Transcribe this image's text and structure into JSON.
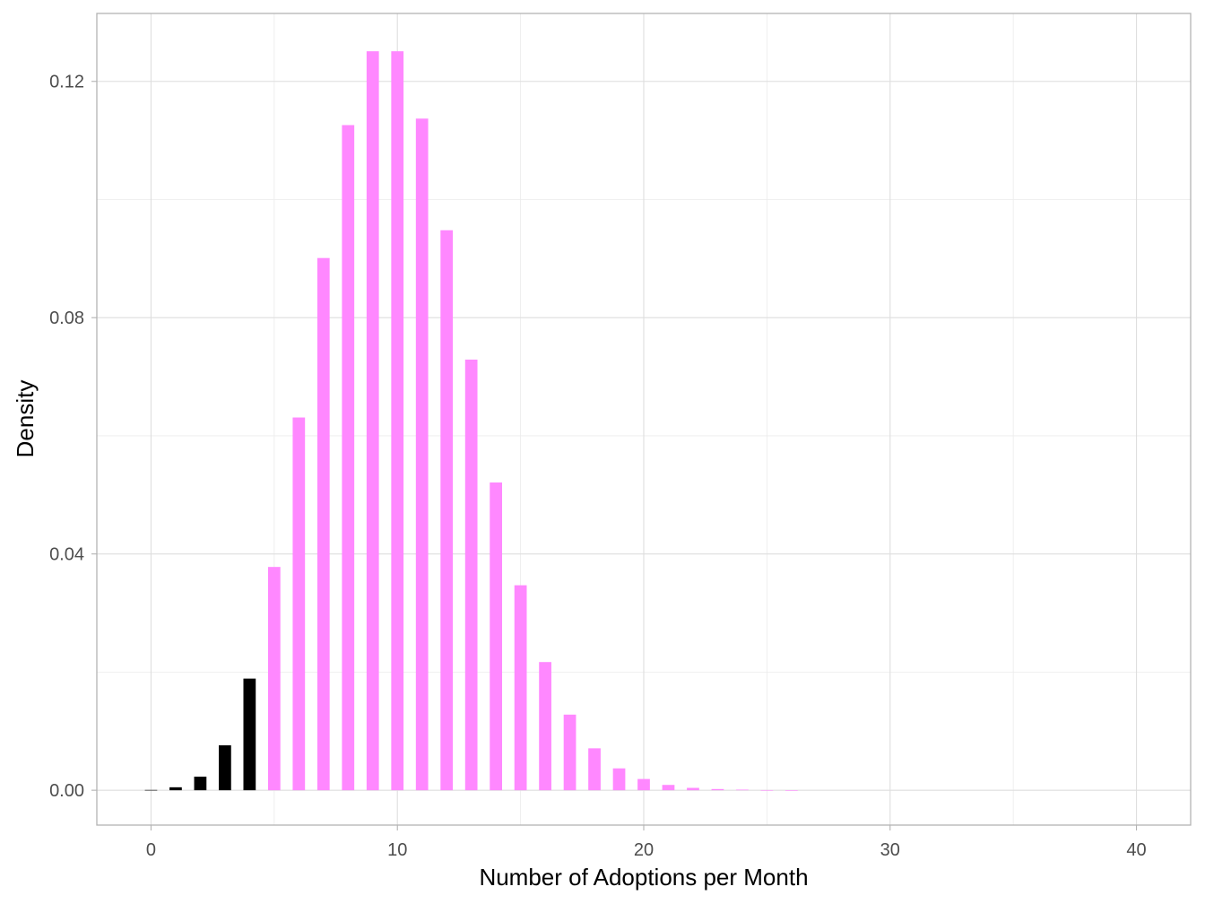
{
  "chart_data": {
    "type": "bar",
    "xlabel": "Number of Adoptions per Month",
    "ylabel": "Density",
    "xlim": [
      -2.2,
      42.2
    ],
    "ylim": [
      -0.0059,
      0.1315
    ],
    "x_ticks": [
      0,
      10,
      20,
      30,
      40
    ],
    "x_tick_labels": [
      "0",
      "10",
      "20",
      "30",
      "40"
    ],
    "y_ticks": [
      0.0,
      0.04,
      0.08,
      0.12
    ],
    "y_tick_labels": [
      "0.00",
      "0.04",
      "0.08",
      "0.12"
    ],
    "grid": true,
    "legend": "none",
    "bar_width": 0.5,
    "colors": {
      "highlight": "#000000",
      "main": "#ff88ff"
    },
    "series": [
      {
        "color_key": "highlight",
        "x": [
          0,
          1,
          2,
          3,
          4
        ],
        "values": [
          5e-05,
          0.0005,
          0.0023,
          0.0076,
          0.0189
        ]
      },
      {
        "color_key": "main",
        "x": [
          5,
          6,
          7,
          8,
          9,
          10,
          11,
          12,
          13,
          14,
          15,
          16,
          17,
          18,
          19,
          20,
          21,
          22,
          23,
          24,
          25,
          26,
          27,
          28,
          29,
          30,
          31,
          32,
          33,
          34,
          35,
          36,
          37,
          38,
          39,
          40
        ],
        "values": [
          0.0378,
          0.0631,
          0.0901,
          0.1126,
          0.1251,
          0.1251,
          0.1137,
          0.0948,
          0.0729,
          0.0521,
          0.0347,
          0.0217,
          0.0128,
          0.0071,
          0.0037,
          0.0019,
          0.0009,
          0.0004,
          0.0002,
          0.0001,
          3e-05,
          1e-05,
          0,
          0,
          0,
          0,
          0,
          0,
          0,
          0,
          0,
          0,
          0,
          0,
          0,
          0
        ]
      }
    ]
  }
}
